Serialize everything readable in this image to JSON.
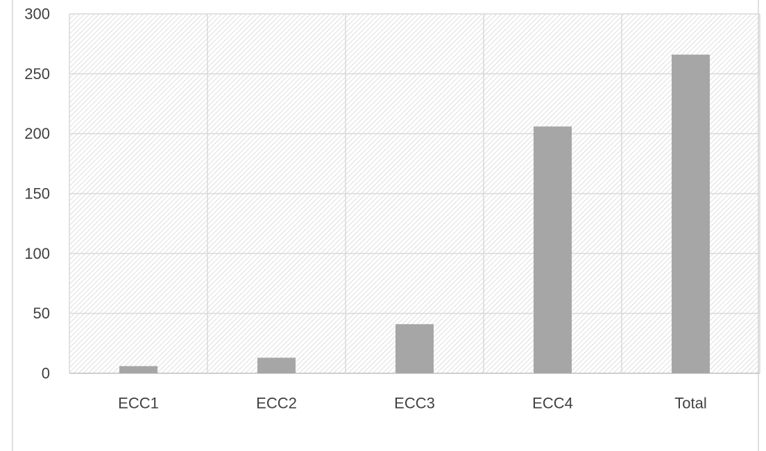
{
  "chart_data": {
    "type": "bar",
    "title": "",
    "xlabel": "",
    "ylabel": "",
    "categories": [
      "ECC1",
      "ECC2",
      "ECC3",
      "ECC4",
      "Total"
    ],
    "values": [
      6,
      13,
      41,
      206,
      266
    ],
    "ylim": [
      0,
      300
    ],
    "yticks": [
      "0",
      "50",
      "100",
      "150",
      "200",
      "250",
      "300"
    ],
    "grid": true,
    "legend": "none",
    "colors": {
      "bar": "#a6a6a6",
      "gridline": "#d9d9d9",
      "hatch": "#d0d0d0",
      "text": "#404040",
      "frame": "#bfbfbf"
    }
  }
}
